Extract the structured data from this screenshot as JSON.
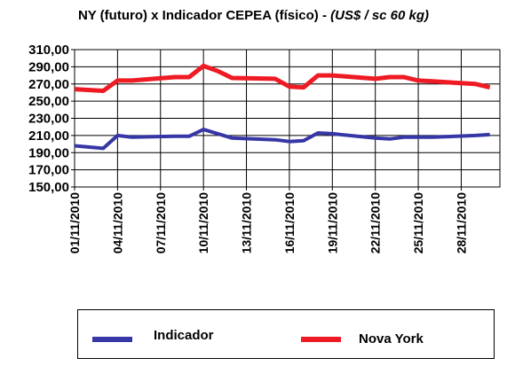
{
  "colors": {
    "indicador": "#3636a6",
    "nova_york": "#ee1b24",
    "grid": "#000000"
  },
  "chart_data": {
    "type": "line",
    "title": "NY (futuro) x Indicador CEPEA (físico) -",
    "title_unit": "(US$ / sc 60 kg)",
    "xlabel": "",
    "ylabel": "",
    "ylim": [
      150,
      310
    ],
    "yticks": [
      "310,00",
      "290,00",
      "270,00",
      "250,00",
      "230,00",
      "210,00",
      "190,00",
      "170,00",
      "150,00"
    ],
    "xtick_labels": [
      "01/11/2010",
      "04/11/2010",
      "07/11/2010",
      "10/11/2010",
      "13/11/2010",
      "16/11/2010",
      "19/11/2010",
      "22/11/2010",
      "25/11/2010",
      "28/11/2010"
    ],
    "x": [
      "01/11/2010",
      "03/11/2010",
      "04/11/2010",
      "05/11/2010",
      "08/11/2010",
      "09/11/2010",
      "10/11/2010",
      "11/11/2010",
      "12/11/2010",
      "15/11/2010",
      "16/11/2010",
      "17/11/2010",
      "18/11/2010",
      "19/11/2010",
      "22/11/2010",
      "23/11/2010",
      "24/11/2010",
      "25/11/2010",
      "26/11/2010",
      "29/11/2010",
      "30/11/2010"
    ],
    "series": [
      {
        "name": "Indicador",
        "color": "#3636a6",
        "values": [
          198,
          195,
          210,
          208,
          209,
          209,
          217,
          212,
          207,
          205,
          203,
          204,
          213,
          212,
          207,
          206,
          208,
          208,
          208,
          210,
          211
        ]
      },
      {
        "name": "Nova York",
        "color": "#ee1b24",
        "values": [
          264,
          262,
          274,
          274,
          278,
          278,
          291,
          285,
          277,
          276,
          267,
          266,
          280,
          280,
          276,
          278,
          278,
          274,
          273,
          270,
          266
        ]
      }
    ],
    "grid": true,
    "legend": "bottom"
  }
}
